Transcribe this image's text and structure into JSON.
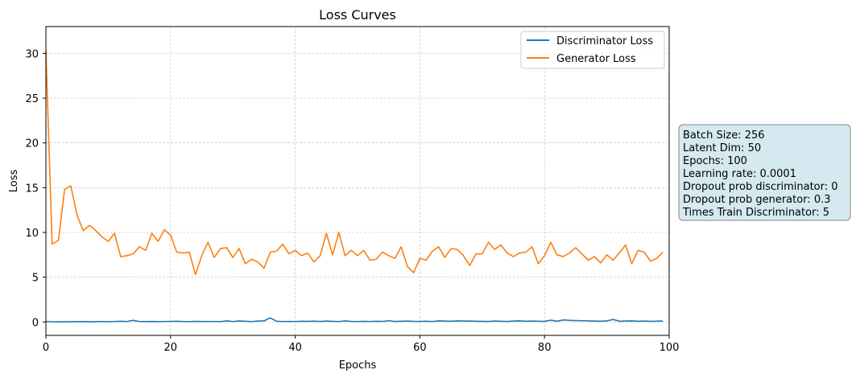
{
  "chart_data": {
    "type": "line",
    "title": "Loss Curves",
    "xlabel": "Epochs",
    "ylabel": "Loss",
    "xlim": [
      0,
      100
    ],
    "ylim": [
      -1.5,
      33
    ],
    "xticks": [
      0,
      20,
      40,
      60,
      80,
      100
    ],
    "yticks": [
      0,
      5,
      10,
      15,
      20,
      25,
      30
    ],
    "grid": true,
    "legend_position": "upper-right",
    "series": [
      {
        "name": "Discriminator Loss",
        "color": "#1f77b4",
        "x": [
          0,
          1,
          2,
          3,
          4,
          5,
          6,
          7,
          8,
          9,
          10,
          11,
          12,
          13,
          14,
          15,
          16,
          17,
          18,
          19,
          20,
          21,
          22,
          23,
          24,
          25,
          26,
          27,
          28,
          29,
          30,
          31,
          32,
          33,
          34,
          35,
          36,
          37,
          38,
          39,
          40,
          41,
          42,
          43,
          44,
          45,
          46,
          47,
          48,
          49,
          50,
          51,
          52,
          53,
          54,
          55,
          56,
          57,
          58,
          59,
          60,
          61,
          62,
          63,
          64,
          65,
          66,
          67,
          68,
          69,
          70,
          71,
          72,
          73,
          74,
          75,
          76,
          77,
          78,
          79,
          80,
          81,
          82,
          83,
          84,
          85,
          86,
          87,
          88,
          89,
          90,
          91,
          92,
          93,
          94,
          95,
          96,
          97,
          98,
          99
        ],
        "values": [
          0.05,
          0.02,
          0.01,
          0.02,
          0.02,
          0.03,
          0.04,
          0.02,
          0.03,
          0.04,
          0.03,
          0.05,
          0.08,
          0.05,
          0.18,
          0.05,
          0.04,
          0.06,
          0.03,
          0.05,
          0.06,
          0.08,
          0.05,
          0.03,
          0.07,
          0.04,
          0.06,
          0.05,
          0.04,
          0.12,
          0.05,
          0.11,
          0.08,
          0.04,
          0.1,
          0.12,
          0.45,
          0.08,
          0.05,
          0.06,
          0.05,
          0.08,
          0.07,
          0.09,
          0.06,
          0.1,
          0.07,
          0.05,
          0.12,
          0.06,
          0.05,
          0.07,
          0.05,
          0.08,
          0.06,
          0.14,
          0.06,
          0.08,
          0.1,
          0.07,
          0.06,
          0.08,
          0.05,
          0.12,
          0.1,
          0.08,
          0.12,
          0.1,
          0.1,
          0.08,
          0.07,
          0.06,
          0.1,
          0.08,
          0.06,
          0.1,
          0.12,
          0.08,
          0.1,
          0.08,
          0.07,
          0.2,
          0.08,
          0.22,
          0.18,
          0.16,
          0.14,
          0.12,
          0.1,
          0.08,
          0.12,
          0.28,
          0.08,
          0.1,
          0.12,
          0.08,
          0.1,
          0.07,
          0.09,
          0.1
        ]
      },
      {
        "name": "Generator Loss",
        "color": "#ff7f0e",
        "x": [
          0,
          1,
          2,
          3,
          4,
          5,
          6,
          7,
          8,
          9,
          10,
          11,
          12,
          13,
          14,
          15,
          16,
          17,
          18,
          19,
          20,
          21,
          22,
          23,
          24,
          25,
          26,
          27,
          28,
          29,
          30,
          31,
          32,
          33,
          34,
          35,
          36,
          37,
          38,
          39,
          40,
          41,
          42,
          43,
          44,
          45,
          46,
          47,
          48,
          49,
          50,
          51,
          52,
          53,
          54,
          55,
          56,
          57,
          58,
          59,
          60,
          61,
          62,
          63,
          64,
          65,
          66,
          67,
          68,
          69,
          70,
          71,
          72,
          73,
          74,
          75,
          76,
          77,
          78,
          79,
          80,
          81,
          82,
          83,
          84,
          85,
          86,
          87,
          88,
          89,
          90,
          91,
          92,
          93,
          94,
          95,
          96,
          97,
          98,
          99
        ],
        "values": [
          30.3,
          8.7,
          9.1,
          14.8,
          15.2,
          11.9,
          10.2,
          10.8,
          10.2,
          9.5,
          9.0,
          9.9,
          7.3,
          7.4,
          7.6,
          8.4,
          8.0,
          9.9,
          9.0,
          10.3,
          9.7,
          7.8,
          7.7,
          7.8,
          5.3,
          7.4,
          8.9,
          7.2,
          8.2,
          8.3,
          7.2,
          8.2,
          6.5,
          7.0,
          6.7,
          6.0,
          7.8,
          7.9,
          8.7,
          7.6,
          8.0,
          7.4,
          7.7,
          6.7,
          7.4,
          9.9,
          7.5,
          10.0,
          7.4,
          8.0,
          7.4,
          8.0,
          6.9,
          7.0,
          7.8,
          7.4,
          7.1,
          8.4,
          6.2,
          5.5,
          7.1,
          6.9,
          7.9,
          8.4,
          7.2,
          8.2,
          8.1,
          7.4,
          6.3,
          7.6,
          7.6,
          8.9,
          8.1,
          8.6,
          7.7,
          7.3,
          7.7,
          7.8,
          8.4,
          6.5,
          7.4,
          8.9,
          7.5,
          7.3,
          7.7,
          8.3,
          7.6,
          6.9,
          7.3,
          6.6,
          7.5,
          6.9,
          7.7,
          8.6,
          6.5,
          8.0,
          7.8,
          6.8,
          7.1,
          7.8
        ]
      }
    ]
  },
  "info_box": {
    "lines": [
      "Batch Size: 256",
      "Latent Dim: 50",
      "Epochs: 100",
      "Learning rate: 0.0001",
      "Dropout prob discriminator: 0",
      "Dropout prob generator: 0.3",
      "Times Train Discriminator: 5"
    ],
    "background": "#d5e9f0",
    "border": "#888888"
  }
}
